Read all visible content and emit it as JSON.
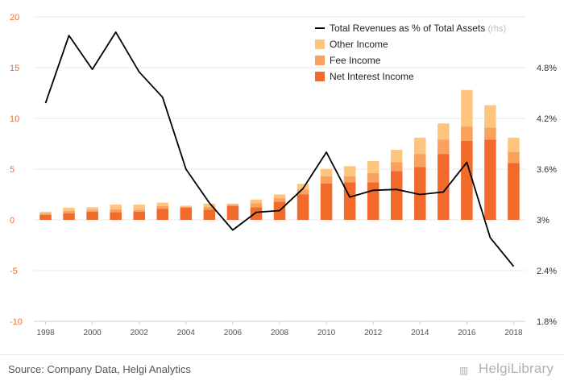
{
  "chart_data": {
    "type": "bar",
    "stacked": true,
    "categories": [
      "1998",
      "1999",
      "2000",
      "2001",
      "2002",
      "2003",
      "2004",
      "2005",
      "2006",
      "2007",
      "2008",
      "2009",
      "2010",
      "2011",
      "2012",
      "2013",
      "2014",
      "2015",
      "2016",
      "2017",
      "2018"
    ],
    "x_tick_labels": [
      "1998",
      "2000",
      "2002",
      "2004",
      "2006",
      "2008",
      "2010",
      "2012",
      "2014",
      "2016",
      "2018"
    ],
    "ylim": [
      -10,
      20
    ],
    "y_ticks": [
      "20",
      "15",
      "10",
      "5",
      "0",
      "-5",
      "-10"
    ],
    "y2lim": [
      1.8,
      5.4
    ],
    "y2_ticks": [
      "4.8%",
      "4.2%",
      "3.6%",
      "3%",
      "2.4%",
      "1.8%"
    ],
    "series": [
      {
        "name": "Net Interest Income",
        "color": "#f26b2a",
        "values": [
          0.5,
          0.65,
          0.8,
          0.75,
          0.8,
          1.1,
          1.2,
          1.0,
          1.35,
          1.25,
          1.8,
          2.5,
          3.6,
          3.7,
          3.7,
          4.8,
          5.2,
          6.5,
          7.8,
          7.9,
          5.6
        ]
      },
      {
        "name": "Fee Income",
        "color": "#f9a15d",
        "values": [
          0.15,
          0.25,
          0.2,
          0.3,
          0.2,
          0.25,
          0.1,
          0.3,
          0.15,
          0.4,
          0.35,
          0.5,
          0.7,
          0.6,
          0.9,
          0.9,
          1.3,
          1.4,
          1.4,
          1.2,
          1.1
        ]
      },
      {
        "name": "Other Income",
        "color": "#fdc57f",
        "values": [
          0.15,
          0.3,
          0.25,
          0.45,
          0.5,
          0.35,
          0.1,
          0.3,
          0.1,
          0.35,
          0.35,
          0.55,
          0.7,
          1.0,
          1.2,
          1.2,
          1.6,
          1.6,
          3.6,
          2.2,
          1.4
        ]
      },
      {
        "name": "Total Revenues as % of Total Assets",
        "color": "#000000",
        "axis": "rhs",
        "values": [
          4.38,
          5.18,
          4.78,
          5.22,
          4.75,
          4.45,
          3.6,
          3.2,
          2.88,
          3.09,
          3.11,
          3.37,
          3.8,
          3.27,
          3.35,
          3.36,
          3.3,
          3.33,
          3.68,
          2.79,
          2.45
        ]
      }
    ],
    "legend": {
      "position": "top-right",
      "line_label": "Total Revenues as % of Total Assets",
      "line_suffix": "(rhs)",
      "items": [
        "Other Income",
        "Fee Income",
        "Net Interest Income"
      ]
    }
  },
  "footer": {
    "source": "Source: Company Data, Helgi Analytics",
    "brand": "HelgiLibrary"
  },
  "colors": {
    "left_axis_text": "#f26b2a",
    "right_axis_text": "#333333",
    "line": "#000000",
    "grid": "#e8e8e8"
  }
}
